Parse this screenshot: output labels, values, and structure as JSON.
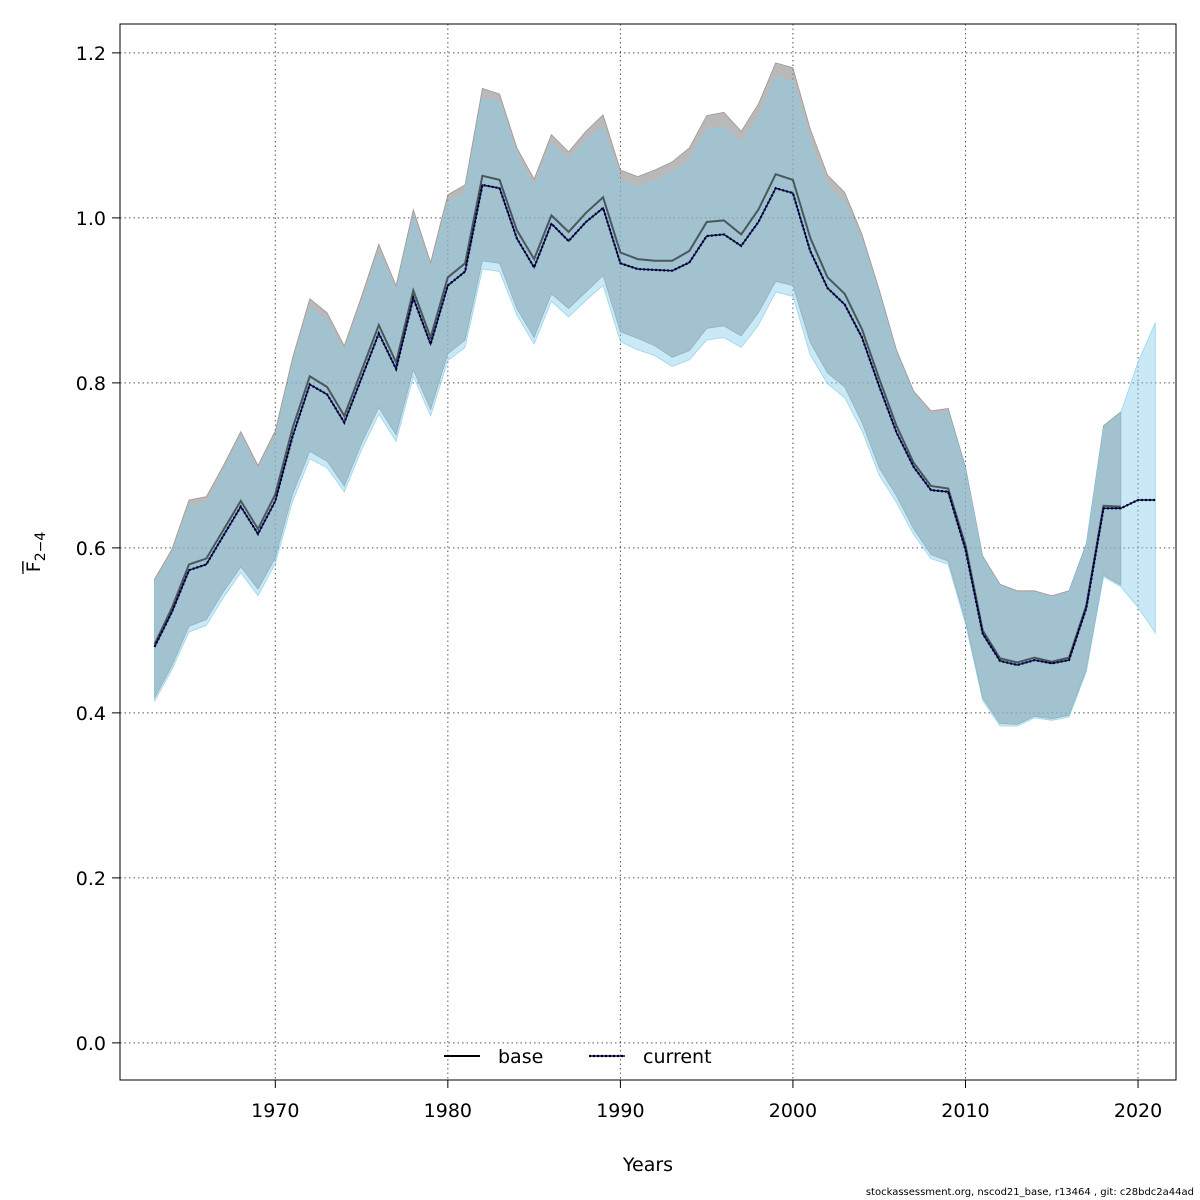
{
  "chart_data": {
    "type": "area",
    "xlabel": "Years",
    "ylabel": "F̅",
    "ylabel_sub": "2−4",
    "xlim": [
      1961,
      2022.2
    ],
    "ylim": [
      -0.045,
      1.235
    ],
    "xticks": [
      1970,
      1980,
      1990,
      2000,
      2010,
      2020
    ],
    "yticks": [
      "0.0",
      "0.2",
      "0.4",
      "0.6",
      "0.8",
      "1.0",
      "1.2"
    ],
    "grid": true,
    "legend_position": "bottom-center",
    "colors": {
      "base_band": "#8a8a8a",
      "base_band_opacity": 0.6,
      "current_band": "#87ceeb",
      "current_band_opacity": 0.45,
      "base_line": "#000000",
      "current_line": "#00008b",
      "grid": "#555555"
    },
    "series": [
      {
        "name": "base",
        "style": "solid",
        "x": [
          1963,
          1964,
          1965,
          1966,
          1967,
          1968,
          1969,
          1970,
          1971,
          1972,
          1973,
          1974,
          1975,
          1976,
          1977,
          1978,
          1979,
          1980,
          1981,
          1982,
          1983,
          1984,
          1985,
          1986,
          1987,
          1988,
          1989,
          1990,
          1991,
          1992,
          1993,
          1994,
          1995,
          1996,
          1997,
          1998,
          1999,
          2000,
          2001,
          2002,
          2003,
          2004,
          2005,
          2006,
          2007,
          2008,
          2009,
          2010,
          2011,
          2012,
          2013,
          2014,
          2015,
          2016,
          2017,
          2018,
          2019
        ],
        "values": [
          0.483,
          0.527,
          0.58,
          0.587,
          0.622,
          0.657,
          0.623,
          0.665,
          0.745,
          0.808,
          0.795,
          0.76,
          0.815,
          0.87,
          0.825,
          0.912,
          0.855,
          0.928,
          0.945,
          1.051,
          1.046,
          0.985,
          0.95,
          1.003,
          0.983,
          1.006,
          1.025,
          0.958,
          0.95,
          0.948,
          0.948,
          0.96,
          0.995,
          0.997,
          0.98,
          1.01,
          1.053,
          1.046,
          0.976,
          0.928,
          0.908,
          0.865,
          0.805,
          0.748,
          0.703,
          0.675,
          0.672,
          0.603,
          0.5,
          0.466,
          0.461,
          0.467,
          0.462,
          0.467,
          0.53,
          0.651,
          0.65
        ],
        "upper": [
          0.562,
          0.598,
          0.658,
          0.662,
          0.7,
          0.741,
          0.7,
          0.742,
          0.83,
          0.902,
          0.885,
          0.845,
          0.905,
          0.968,
          0.918,
          1.01,
          0.946,
          1.028,
          1.04,
          1.157,
          1.15,
          1.085,
          1.047,
          1.101,
          1.08,
          1.105,
          1.125,
          1.058,
          1.05,
          1.058,
          1.068,
          1.085,
          1.124,
          1.128,
          1.105,
          1.138,
          1.188,
          1.182,
          1.108,
          1.052,
          1.031,
          0.98,
          0.913,
          0.84,
          0.79,
          0.766,
          0.769,
          0.698,
          0.59,
          0.556,
          0.548,
          0.548,
          0.542,
          0.548,
          0.605,
          0.748,
          0.765
        ],
        "lower": [
          0.418,
          0.457,
          0.505,
          0.513,
          0.547,
          0.577,
          0.55,
          0.588,
          0.665,
          0.717,
          0.705,
          0.675,
          0.727,
          0.77,
          0.737,
          0.816,
          0.768,
          0.835,
          0.852,
          0.948,
          0.945,
          0.89,
          0.855,
          0.908,
          0.89,
          0.91,
          0.93,
          0.862,
          0.854,
          0.845,
          0.831,
          0.839,
          0.866,
          0.869,
          0.857,
          0.885,
          0.923,
          0.918,
          0.849,
          0.812,
          0.795,
          0.752,
          0.697,
          0.663,
          0.623,
          0.592,
          0.584,
          0.512,
          0.418,
          0.387,
          0.386,
          0.396,
          0.393,
          0.397,
          0.452,
          0.567,
          0.555
        ]
      },
      {
        "name": "current",
        "style": "dotted",
        "x": [
          1963,
          1964,
          1965,
          1966,
          1967,
          1968,
          1969,
          1970,
          1971,
          1972,
          1973,
          1974,
          1975,
          1976,
          1977,
          1978,
          1979,
          1980,
          1981,
          1982,
          1983,
          1984,
          1985,
          1986,
          1987,
          1988,
          1989,
          1990,
          1991,
          1992,
          1993,
          1994,
          1995,
          1996,
          1997,
          1998,
          1999,
          2000,
          2001,
          2002,
          2003,
          2004,
          2005,
          2006,
          2007,
          2008,
          2009,
          2010,
          2011,
          2012,
          2013,
          2014,
          2015,
          2016,
          2017,
          2018,
          2019,
          2020,
          2021
        ],
        "values": [
          0.48,
          0.522,
          0.573,
          0.58,
          0.615,
          0.65,
          0.617,
          0.657,
          0.735,
          0.798,
          0.786,
          0.752,
          0.806,
          0.86,
          0.817,
          0.903,
          0.847,
          0.918,
          0.935,
          1.04,
          1.036,
          0.975,
          0.94,
          0.993,
          0.972,
          0.995,
          1.012,
          0.945,
          0.938,
          0.937,
          0.936,
          0.946,
          0.978,
          0.98,
          0.966,
          0.995,
          1.036,
          1.03,
          0.96,
          0.915,
          0.895,
          0.855,
          0.796,
          0.74,
          0.698,
          0.67,
          0.668,
          0.598,
          0.496,
          0.463,
          0.458,
          0.464,
          0.46,
          0.464,
          0.527,
          0.648,
          0.648,
          0.658,
          0.658
        ],
        "upper": [
          0.558,
          0.592,
          0.65,
          0.654,
          0.692,
          0.734,
          0.693,
          0.733,
          0.82,
          0.89,
          0.875,
          0.837,
          0.895,
          0.957,
          0.91,
          1.0,
          0.938,
          1.018,
          1.03,
          1.145,
          1.14,
          1.076,
          1.037,
          1.09,
          1.07,
          1.093,
          1.11,
          1.045,
          1.038,
          1.044,
          1.055,
          1.07,
          1.106,
          1.11,
          1.09,
          1.121,
          1.17,
          1.165,
          1.092,
          1.038,
          1.019,
          0.97,
          0.906,
          0.833,
          0.785,
          0.76,
          0.765,
          0.695,
          0.587,
          0.553,
          0.545,
          0.546,
          0.54,
          0.546,
          0.603,
          0.745,
          0.764,
          0.825,
          0.873
        ],
        "lower": [
          0.414,
          0.452,
          0.498,
          0.506,
          0.54,
          0.57,
          0.542,
          0.581,
          0.656,
          0.708,
          0.697,
          0.668,
          0.719,
          0.762,
          0.729,
          0.808,
          0.76,
          0.827,
          0.843,
          0.938,
          0.935,
          0.882,
          0.847,
          0.899,
          0.88,
          0.9,
          0.918,
          0.85,
          0.84,
          0.833,
          0.82,
          0.828,
          0.852,
          0.855,
          0.843,
          0.87,
          0.91,
          0.905,
          0.834,
          0.799,
          0.782,
          0.742,
          0.688,
          0.655,
          0.616,
          0.587,
          0.58,
          0.508,
          0.415,
          0.384,
          0.384,
          0.394,
          0.391,
          0.395,
          0.45,
          0.565,
          0.553,
          0.528,
          0.497
        ]
      }
    ]
  },
  "legend": {
    "items": [
      {
        "label": "base",
        "style": "solid",
        "color": "#000000"
      },
      {
        "label": "current",
        "style": "dotted",
        "color": "#00008b"
      }
    ]
  },
  "footer": {
    "text": "stockassessment.org, nscod21_base, r13464 , git: c28bdc2a44ad"
  }
}
